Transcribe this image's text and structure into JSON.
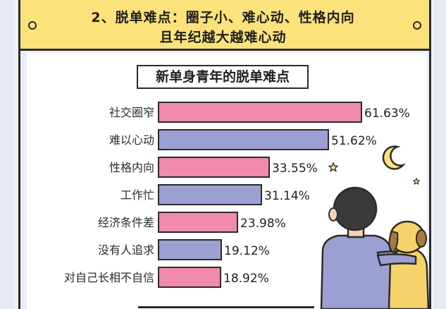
{
  "header": {
    "line1": "2、脱单难点：圈子小、难心动、性格内向",
    "line2": "且年纪越大越难心动"
  },
  "colors": {
    "pink": "#f18aab",
    "purple": "#9b9fd2",
    "banner": "#fbe27a",
    "outline": "#2b2b2b"
  },
  "chart_data": {
    "type": "bar",
    "orientation": "horizontal",
    "title": "新单身青年的脱单难点",
    "categories": [
      "社交圈窄",
      "难以心动",
      "性格内向",
      "工作忙",
      "经济条件差",
      "没有人追求",
      "对自己长相不自信"
    ],
    "values": [
      61.63,
      51.62,
      33.55,
      31.14,
      23.98,
      19.12,
      18.92
    ],
    "value_labels": [
      "61.63%",
      "51.62%",
      "33.55%",
      "31.14%",
      "23.98%",
      "19.12%",
      "18.92%"
    ],
    "xlim": [
      0,
      61.63
    ],
    "grid": false,
    "legend": "none"
  }
}
